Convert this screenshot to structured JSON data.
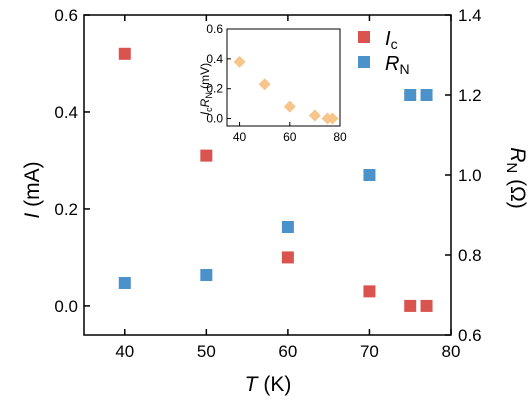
{
  "chart_data": {
    "type": "scatter",
    "x_axis": {
      "label_symbol": "T",
      "label_unit": " (K)",
      "range": [
        35,
        80
      ],
      "ticks": [
        40,
        50,
        60,
        70,
        80
      ]
    },
    "y_left_axis": {
      "label_symbol": "I",
      "label_unit": " (mA)",
      "range": [
        -0.06,
        0.6
      ],
      "ticks": [
        0.0,
        0.2,
        0.4,
        0.6
      ],
      "tick_labels": [
        "0.0",
        "0.2",
        "0.4",
        "0.6"
      ]
    },
    "y_right_axis": {
      "label_symbol": "R",
      "label_subscript": "N",
      "label_unit": " (Ω)",
      "range": [
        0.6,
        1.4
      ],
      "ticks": [
        0.6,
        0.8,
        1.0,
        1.2,
        1.4
      ],
      "tick_labels": [
        "0.6",
        "0.8",
        "1.0",
        "1.2",
        "1.4"
      ]
    },
    "series": [
      {
        "name": "I",
        "name_subscript": "c",
        "axis": "left",
        "color": "#d9534f",
        "marker": "square",
        "points": [
          [
            40,
            0.52
          ],
          [
            50,
            0.31
          ],
          [
            60,
            0.1
          ],
          [
            70,
            0.03
          ],
          [
            75,
            0.0
          ],
          [
            77,
            0.0
          ]
        ]
      },
      {
        "name": "R",
        "name_subscript": "N",
        "axis": "right",
        "color": "#4a92c9",
        "marker": "square",
        "points": [
          [
            40,
            0.73
          ],
          [
            50,
            0.75
          ],
          [
            60,
            0.87
          ],
          [
            70,
            1.0
          ],
          [
            75,
            1.2
          ],
          [
            77,
            1.2
          ]
        ]
      }
    ],
    "legend": {
      "placement": "top-right"
    },
    "inset": {
      "x_axis": {
        "range": [
          35,
          80
        ],
        "ticks": [
          40,
          60,
          80
        ]
      },
      "y_axis": {
        "label_parts": [
          "I",
          "c",
          "R",
          "N",
          " (mV)"
        ],
        "range": [
          -0.05,
          0.6
        ],
        "ticks": [
          0.0,
          0.2,
          0.4,
          0.6
        ],
        "tick_labels": [
          "0.0",
          "0.2",
          "0.4",
          "0.6"
        ]
      },
      "series": [
        {
          "color": "#f7c48a",
          "marker": "diamond",
          "points": [
            [
              40,
              0.38
            ],
            [
              50,
              0.23
            ],
            [
              60,
              0.08
            ],
            [
              70,
              0.02
            ],
            [
              75,
              0.0
            ],
            [
              77,
              0.0
            ]
          ]
        }
      ]
    }
  }
}
